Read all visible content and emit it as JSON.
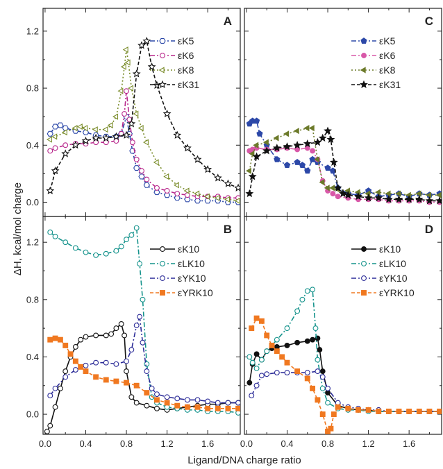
{
  "figure": {
    "xlabel": "Ligand/DNA charge ratio",
    "ylabel": "ΔH, kcal/mol charge"
  },
  "chart_data": [
    {
      "panel": "A",
      "type": "line",
      "xlim": [
        -0.02,
        1.92
      ],
      "ylim": [
        -0.1,
        1.36
      ],
      "xticks": [
        "0.0",
        "0.4",
        "0.8",
        "1.2",
        "1.6"
      ],
      "yticks": [
        "0.0",
        "0.4",
        "0.8",
        "1.2"
      ],
      "series": [
        {
          "name": "εK5",
          "color": "#2c48a8",
          "marker": "hexagon-open",
          "dash": "dashdot",
          "x": [
            0.05,
            0.1,
            0.15,
            0.2,
            0.3,
            0.4,
            0.5,
            0.6,
            0.7,
            0.75,
            0.8,
            0.83,
            0.86,
            0.9,
            0.95,
            1.0,
            1.1,
            1.2,
            1.3,
            1.4,
            1.5,
            1.6,
            1.7,
            1.8,
            1.9
          ],
          "y": [
            0.48,
            0.53,
            0.54,
            0.52,
            0.5,
            0.49,
            0.47,
            0.46,
            0.46,
            0.48,
            0.6,
            0.48,
            0.36,
            0.24,
            0.18,
            0.12,
            0.07,
            0.05,
            0.03,
            0.02,
            0.01,
            0.01,
            0.01,
            0.0,
            0.0
          ]
        },
        {
          "name": "εK6",
          "color": "#b8288c",
          "marker": "circle-open",
          "dash": "dashdot",
          "x": [
            0.05,
            0.1,
            0.2,
            0.3,
            0.4,
            0.5,
            0.6,
            0.7,
            0.75,
            0.78,
            0.8,
            0.83,
            0.86,
            0.9,
            0.95,
            1.0,
            1.1,
            1.2,
            1.3,
            1.4,
            1.5,
            1.6,
            1.7,
            1.8,
            1.9
          ],
          "y": [
            0.36,
            0.38,
            0.4,
            0.41,
            0.41,
            0.42,
            0.42,
            0.43,
            0.48,
            0.62,
            0.78,
            0.58,
            0.42,
            0.3,
            0.22,
            0.16,
            0.1,
            0.08,
            0.06,
            0.05,
            0.04,
            0.04,
            0.04,
            0.03,
            0.03
          ]
        },
        {
          "name": "εK8",
          "color": "#7a8c2a",
          "marker": "triangle-left-open",
          "dash": "dot",
          "x": [
            0.05,
            0.1,
            0.2,
            0.3,
            0.35,
            0.4,
            0.5,
            0.6,
            0.65,
            0.7,
            0.75,
            0.78,
            0.8,
            0.82,
            0.85,
            0.9,
            0.95,
            1.0,
            1.1,
            1.2,
            1.3,
            1.4,
            1.5,
            1.6,
            1.7,
            1.8,
            1.9
          ],
          "y": [
            0.44,
            0.46,
            0.49,
            0.52,
            0.53,
            0.52,
            0.51,
            0.51,
            0.54,
            0.6,
            0.78,
            0.95,
            1.07,
            0.98,
            0.8,
            0.62,
            0.52,
            0.42,
            0.28,
            0.18,
            0.12,
            0.08,
            0.06,
            0.04,
            0.03,
            0.02,
            0.01
          ]
        },
        {
          "name": "εK31",
          "color": "#111111",
          "marker": "star-open",
          "dash": "dash",
          "x": [
            0.05,
            0.1,
            0.2,
            0.3,
            0.4,
            0.5,
            0.6,
            0.7,
            0.8,
            0.85,
            0.9,
            0.95,
            1.0,
            1.05,
            1.1,
            1.2,
            1.3,
            1.4,
            1.5,
            1.6,
            1.7,
            1.8,
            1.9
          ],
          "y": [
            0.08,
            0.22,
            0.34,
            0.4,
            0.43,
            0.45,
            0.45,
            0.46,
            0.47,
            0.55,
            0.9,
            1.1,
            1.13,
            0.95,
            0.82,
            0.62,
            0.47,
            0.38,
            0.3,
            0.23,
            0.17,
            0.13,
            0.1
          ]
        }
      ]
    },
    {
      "panel": "B",
      "type": "line",
      "xlim": [
        -0.02,
        1.92
      ],
      "ylim": [
        -0.14,
        1.38
      ],
      "xticks": [
        "0.0",
        "0.4",
        "0.8",
        "1.2",
        "1.6"
      ],
      "yticks": [
        "0.0",
        "0.4",
        "0.8",
        "1.2"
      ],
      "series": [
        {
          "name": "εK10",
          "color": "#111111",
          "marker": "circle-open",
          "dash": "solid",
          "x": [
            0.02,
            0.05,
            0.1,
            0.15,
            0.2,
            0.25,
            0.3,
            0.35,
            0.4,
            0.5,
            0.6,
            0.65,
            0.7,
            0.75,
            0.78,
            0.8,
            0.85,
            0.9,
            1.0,
            1.1,
            1.2,
            1.3,
            1.4,
            1.5,
            1.6,
            1.7,
            1.8,
            1.9
          ],
          "y": [
            -0.12,
            -0.08,
            0.05,
            0.18,
            0.3,
            0.4,
            0.47,
            0.52,
            0.54,
            0.55,
            0.55,
            0.56,
            0.6,
            0.63,
            0.55,
            0.3,
            0.12,
            0.08,
            0.06,
            0.04,
            0.03,
            0.04,
            0.05,
            0.06,
            0.07,
            0.07,
            0.08,
            0.08
          ]
        },
        {
          "name": "εLK10",
          "color": "#15938c",
          "marker": "circle-open",
          "dash": "dashdot",
          "x": [
            0.05,
            0.1,
            0.2,
            0.3,
            0.4,
            0.5,
            0.6,
            0.7,
            0.75,
            0.8,
            0.85,
            0.9,
            0.93,
            0.96,
            1.0,
            1.05,
            1.1,
            1.2,
            1.3,
            1.4,
            1.5,
            1.6,
            1.7,
            1.8,
            1.9
          ],
          "y": [
            1.27,
            1.24,
            1.2,
            1.16,
            1.13,
            1.11,
            1.12,
            1.14,
            1.17,
            1.22,
            1.25,
            1.3,
            1.05,
            0.8,
            0.35,
            0.12,
            0.08,
            0.05,
            0.04,
            0.03,
            0.03,
            0.02,
            0.02,
            0.02,
            0.01
          ]
        },
        {
          "name": "εYK10",
          "color": "#2c2c98",
          "marker": "circle-open",
          "dash": "dashdot",
          "x": [
            0.05,
            0.1,
            0.2,
            0.3,
            0.4,
            0.5,
            0.6,
            0.7,
            0.8,
            0.85,
            0.9,
            0.93,
            0.96,
            1.0,
            1.05,
            1.1,
            1.2,
            1.3,
            1.4,
            1.5,
            1.6,
            1.7,
            1.8,
            1.9
          ],
          "y": [
            0.13,
            0.18,
            0.26,
            0.31,
            0.34,
            0.36,
            0.36,
            0.35,
            0.37,
            0.45,
            0.62,
            0.68,
            0.5,
            0.3,
            0.18,
            0.14,
            0.12,
            0.11,
            0.1,
            0.1,
            0.09,
            0.08,
            0.08,
            0.08
          ]
        },
        {
          "name": "εYRK10",
          "color": "#f07820",
          "marker": "square",
          "dash": "dash",
          "x": [
            0.05,
            0.1,
            0.15,
            0.2,
            0.25,
            0.3,
            0.35,
            0.4,
            0.5,
            0.6,
            0.7,
            0.8,
            0.9,
            1.0,
            1.1,
            1.2,
            1.3,
            1.4,
            1.5,
            1.6,
            1.7,
            1.8,
            1.9
          ],
          "y": [
            0.52,
            0.53,
            0.52,
            0.48,
            0.42,
            0.37,
            0.33,
            0.3,
            0.26,
            0.24,
            0.23,
            0.22,
            0.2,
            0.15,
            0.1,
            0.08,
            0.06,
            0.05,
            0.05,
            0.04,
            0.04,
            0.04,
            0.04
          ]
        }
      ]
    },
    {
      "panel": "C",
      "type": "line",
      "xlim": [
        -0.02,
        1.92
      ],
      "ylim": [
        -0.1,
        1.36
      ],
      "xticks": [
        "0.0",
        "0.4",
        "0.8",
        "1.2",
        "1.6"
      ],
      "yticks": [
        "0.0",
        "0.4",
        "0.8",
        "1.2"
      ],
      "series": [
        {
          "name": "εK5",
          "color": "#2c48a8",
          "marker": "pentagon",
          "dash": "dashdot",
          "x": [
            0.03,
            0.06,
            0.1,
            0.13,
            0.2,
            0.3,
            0.4,
            0.5,
            0.55,
            0.6,
            0.65,
            0.7,
            0.8,
            0.85,
            0.9,
            1.0,
            1.1,
            1.2,
            1.3,
            1.4,
            1.5,
            1.6,
            1.7,
            1.8,
            1.9
          ],
          "y": [
            0.55,
            0.57,
            0.57,
            0.48,
            0.4,
            0.3,
            0.26,
            0.28,
            0.26,
            0.22,
            0.3,
            0.28,
            0.24,
            0.22,
            0.1,
            0.06,
            0.05,
            0.08,
            0.04,
            0.05,
            0.06,
            0.04,
            0.06,
            0.05,
            0.06
          ]
        },
        {
          "name": "εK6",
          "color": "#d858a8",
          "marker": "circle",
          "dash": "dashdot",
          "x": [
            0.03,
            0.06,
            0.1,
            0.2,
            0.3,
            0.4,
            0.5,
            0.6,
            0.65,
            0.7,
            0.75,
            0.8,
            0.85,
            0.9,
            1.0,
            1.1,
            1.2,
            1.3,
            1.4,
            1.5,
            1.6,
            1.7,
            1.8,
            1.9
          ],
          "y": [
            0.36,
            0.37,
            0.38,
            0.37,
            0.37,
            0.38,
            0.37,
            0.38,
            0.36,
            0.3,
            0.15,
            0.08,
            0.06,
            0.04,
            0.03,
            0.02,
            0.02,
            0.02,
            0.01,
            0.01,
            0.01,
            0.01,
            0.0,
            0.0
          ]
        },
        {
          "name": "εK8",
          "color": "#6c7a2a",
          "marker": "triangle-left",
          "dash": "dot",
          "x": [
            0.03,
            0.06,
            0.1,
            0.2,
            0.3,
            0.4,
            0.5,
            0.6,
            0.65,
            0.7,
            0.75,
            0.8,
            0.85,
            0.9,
            1.0,
            1.1,
            1.2,
            1.3,
            1.4,
            1.5,
            1.6,
            1.7,
            1.8,
            1.9
          ],
          "y": [
            0.22,
            0.34,
            0.4,
            0.42,
            0.45,
            0.48,
            0.5,
            0.52,
            0.52,
            0.3,
            0.14,
            0.1,
            0.1,
            0.09,
            0.08,
            0.07,
            0.06,
            0.07,
            0.06,
            0.06,
            0.05,
            0.06,
            0.05,
            0.05
          ]
        },
        {
          "name": "εK31",
          "color": "#111111",
          "marker": "star",
          "dash": "dash",
          "x": [
            0.03,
            0.06,
            0.1,
            0.2,
            0.3,
            0.4,
            0.5,
            0.6,
            0.7,
            0.75,
            0.8,
            0.83,
            0.86,
            0.9,
            0.95,
            1.0,
            1.1,
            1.2,
            1.3,
            1.4,
            1.5,
            1.6,
            1.7,
            1.8,
            1.9
          ],
          "y": [
            0.06,
            0.18,
            0.32,
            0.36,
            0.38,
            0.39,
            0.4,
            0.41,
            0.42,
            0.45,
            0.5,
            0.44,
            0.28,
            0.1,
            0.06,
            0.05,
            0.04,
            0.03,
            0.03,
            0.02,
            0.02,
            0.02,
            0.02,
            0.01,
            0.01
          ]
        }
      ]
    },
    {
      "panel": "D",
      "type": "line",
      "xlim": [
        -0.02,
        1.92
      ],
      "ylim": [
        -0.14,
        1.38
      ],
      "xticks": [
        "0.0",
        "0.4",
        "0.8",
        "1.2",
        "1.6"
      ],
      "yticks": [
        "0.0",
        "0.4",
        "0.8",
        "1.2"
      ],
      "series": [
        {
          "name": "εK10",
          "color": "#111111",
          "marker": "circle",
          "dash": "solid",
          "x": [
            0.03,
            0.06,
            0.1,
            0.15,
            0.2,
            0.25,
            0.3,
            0.4,
            0.5,
            0.6,
            0.65,
            0.7,
            0.72,
            0.75,
            0.8,
            0.9,
            1.0,
            1.1,
            1.2,
            1.3,
            1.4,
            1.5,
            1.6,
            1.7,
            1.8,
            1.9
          ],
          "y": [
            0.22,
            0.35,
            0.42,
            0.38,
            0.44,
            0.46,
            0.47,
            0.48,
            0.5,
            0.51,
            0.52,
            0.53,
            0.45,
            0.3,
            0.15,
            0.06,
            0.04,
            0.03,
            0.03,
            0.02,
            0.02,
            0.02,
            0.02,
            0.02,
            0.02,
            0.02
          ]
        },
        {
          "name": "εLK10",
          "color": "#15938c",
          "marker": "circle-open",
          "dash": "dashdot",
          "x": [
            0.03,
            0.06,
            0.1,
            0.15,
            0.2,
            0.3,
            0.4,
            0.5,
            0.55,
            0.6,
            0.65,
            0.68,
            0.7,
            0.75,
            0.8,
            0.9,
            1.0,
            1.1,
            1.2,
            1.3,
            1.4,
            1.5,
            1.6,
            1.7,
            1.8,
            1.9
          ],
          "y": [
            0.4,
            0.36,
            0.32,
            0.38,
            0.44,
            0.52,
            0.6,
            0.72,
            0.8,
            0.86,
            0.87,
            0.6,
            0.38,
            0.18,
            0.08,
            0.04,
            0.03,
            0.03,
            0.02,
            0.02,
            0.02,
            0.02,
            0.02,
            0.02,
            0.02,
            0.02
          ]
        },
        {
          "name": "εYK10",
          "color": "#2c2c98",
          "marker": "circle-open",
          "dash": "dashdot",
          "x": [
            0.05,
            0.1,
            0.15,
            0.2,
            0.3,
            0.4,
            0.5,
            0.6,
            0.7,
            0.75,
            0.8,
            0.9,
            1.0,
            1.1,
            1.2,
            1.3,
            1.4,
            1.5,
            1.6,
            1.7,
            1.8,
            1.9
          ],
          "y": [
            0.13,
            0.2,
            0.27,
            0.28,
            0.29,
            0.29,
            0.29,
            0.29,
            0.3,
            0.26,
            0.18,
            0.08,
            0.05,
            0.04,
            0.03,
            0.03,
            0.02,
            0.02,
            0.02,
            0.02,
            0.02,
            0.02
          ]
        },
        {
          "name": "εYRK10",
          "color": "#f07820",
          "marker": "square",
          "dash": "dash",
          "x": [
            0.05,
            0.1,
            0.15,
            0.2,
            0.25,
            0.3,
            0.35,
            0.4,
            0.5,
            0.6,
            0.65,
            0.7,
            0.75,
            0.8,
            0.83,
            0.86,
            0.9,
            1.0,
            1.1,
            1.2,
            1.3,
            1.4,
            1.5,
            1.6,
            1.7,
            1.8,
            1.9
          ],
          "y": [
            0.6,
            0.67,
            0.65,
            0.55,
            0.48,
            0.44,
            0.4,
            0.36,
            0.3,
            0.25,
            0.18,
            0.1,
            0.0,
            -0.12,
            -0.1,
            0.0,
            0.05,
            0.04,
            0.03,
            0.03,
            0.02,
            0.02,
            0.02,
            0.02,
            0.02,
            0.02,
            0.02
          ]
        }
      ]
    }
  ]
}
